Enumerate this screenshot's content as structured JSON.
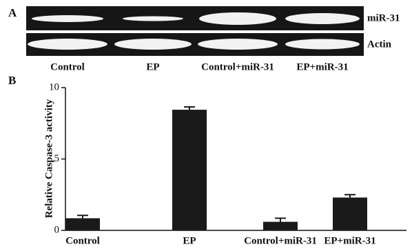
{
  "gel": {
    "panel_label": "A",
    "rows": [
      "miR-31",
      "Actin"
    ],
    "lanes": [
      "Control",
      "EP",
      "Control+miR-31",
      "EP+miR-31"
    ]
  },
  "chart_data": {
    "type": "bar",
    "panel_label": "B",
    "ylabel": "Relative Caspase-3 activity",
    "categories": [
      "Control",
      "EP",
      "Control+miR-31",
      "EP+miR-31"
    ],
    "values": [
      0.85,
      8.45,
      0.6,
      2.3
    ],
    "errors": [
      0.2,
      0.2,
      0.25,
      0.2
    ],
    "color": "#1a1a1a",
    "ylim": [
      0,
      10
    ],
    "yticks": [
      0,
      5,
      10
    ]
  }
}
